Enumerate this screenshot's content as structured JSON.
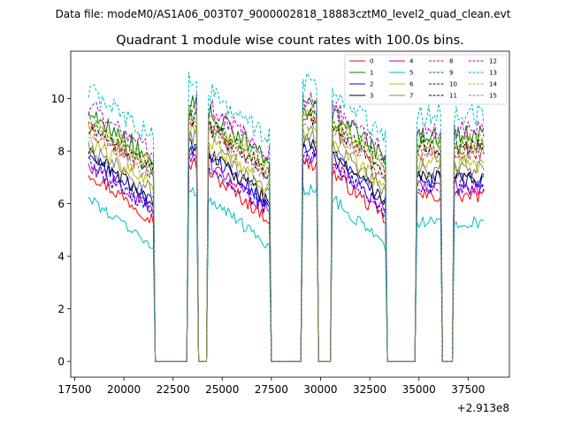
{
  "chart_data": {
    "type": "line",
    "suptitle": "Data file: modeM0/AS1A06_003T07_9000002818_18883cztM0_level2_quad_clean.evt",
    "title": "Quadrant 1 module wise count rates with 100.0s bins.",
    "xlabel": "",
    "ylabel": "",
    "x_offset_label": "+2.913e8",
    "xlim": [
      17300,
      39600
    ],
    "ylim": [
      -0.6,
      11.8
    ],
    "xticks": [
      17500,
      20000,
      22500,
      25000,
      27500,
      30000,
      32500,
      35000,
      37500
    ],
    "xtick_labels": [
      "17500",
      "20000",
      "22500",
      "25000",
      "27500",
      "30000",
      "32500",
      "35000",
      "37500"
    ],
    "yticks": [
      0,
      2,
      4,
      6,
      8,
      10
    ],
    "ytick_labels": [
      "0",
      "2",
      "4",
      "6",
      "8",
      "10"
    ],
    "bin_seconds": 100,
    "x_start": 18200,
    "x_end": 38300,
    "on_segments": [
      [
        18200,
        21500
      ],
      [
        23300,
        23700
      ],
      [
        24300,
        27400
      ],
      [
        29100,
        29800
      ],
      [
        30600,
        33300
      ],
      [
        34900,
        36100
      ],
      [
        36800,
        38300
      ]
    ],
    "off_value": 0,
    "legend": {
      "placement": "upper right",
      "columns": 4
    },
    "series": [
      {
        "name": "0",
        "color": "#ff0000",
        "dash": "solid",
        "level": 6.3
      },
      {
        "name": "1",
        "color": "#008000",
        "dash": "solid",
        "level": 8.6
      },
      {
        "name": "2",
        "color": "#0000ff",
        "dash": "solid",
        "level": 6.9
      },
      {
        "name": "3",
        "color": "#000000",
        "dash": "solid",
        "level": 7.0
      },
      {
        "name": "4",
        "color": "#bf00bf",
        "dash": "solid",
        "level": 6.6
      },
      {
        "name": "5",
        "color": "#00bfbf",
        "dash": "solid",
        "level": 5.3
      },
      {
        "name": "6",
        "color": "#bfbf00",
        "dash": "solid",
        "level": 7.5
      },
      {
        "name": "7",
        "color": "#808080",
        "dash": "solid",
        "level": 7.3
      },
      {
        "name": "8",
        "color": "#ff0000",
        "dash": "dashed",
        "level": 8.0
      },
      {
        "name": "9",
        "color": "#008000",
        "dash": "dashed",
        "level": 8.3
      },
      {
        "name": "10",
        "color": "#0000ff",
        "dash": "dashed",
        "level": 6.6
      },
      {
        "name": "11",
        "color": "#000000",
        "dash": "dashed",
        "level": 8.1
      },
      {
        "name": "12",
        "color": "#bf00bf",
        "dash": "dashed",
        "level": 8.8
      },
      {
        "name": "13",
        "color": "#00bfbf",
        "dash": "dashed",
        "level": 9.4
      },
      {
        "name": "14",
        "color": "#bfbf00",
        "dash": "dashed",
        "level": 8.3
      },
      {
        "name": "15",
        "color": "#808080",
        "dash": "dashed",
        "level": 7.9
      }
    ]
  }
}
